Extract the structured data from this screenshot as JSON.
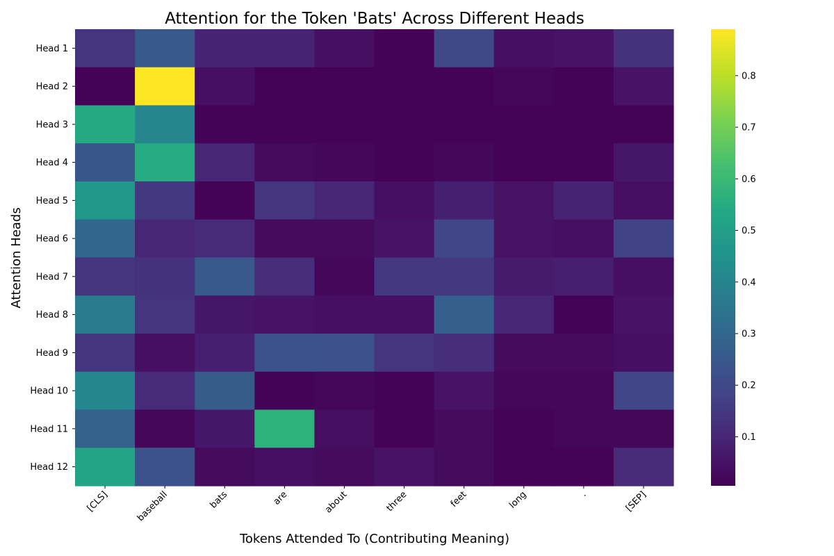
{
  "chart_data": {
    "type": "heatmap",
    "title": "Attention for the Token 'Bats' Across Different Heads",
    "xlabel": "Tokens Attended To (Contributing Meaning)",
    "ylabel": "Attention Heads",
    "x_categories": [
      "[CLS]",
      "baseball",
      "bats",
      "are",
      "about",
      "three",
      "feet",
      "long",
      ".",
      "[SEP]"
    ],
    "y_categories": [
      "Head 1",
      "Head 2",
      "Head 3",
      "Head 4",
      "Head 5",
      "Head 6",
      "Head 7",
      "Head 8",
      "Head 9",
      "Head 10",
      "Head 11",
      "Head 12"
    ],
    "values": [
      [
        0.14,
        0.25,
        0.09,
        0.09,
        0.04,
        0.01,
        0.2,
        0.04,
        0.05,
        0.13
      ],
      [
        0.01,
        0.89,
        0.04,
        0.01,
        0.01,
        0.01,
        0.01,
        0.02,
        0.01,
        0.05
      ],
      [
        0.54,
        0.41,
        0.01,
        0.01,
        0.01,
        0.01,
        0.01,
        0.01,
        0.01,
        0.01
      ],
      [
        0.24,
        0.55,
        0.1,
        0.03,
        0.02,
        0.01,
        0.02,
        0.01,
        0.01,
        0.06
      ],
      [
        0.47,
        0.15,
        0.01,
        0.14,
        0.1,
        0.04,
        0.08,
        0.05,
        0.09,
        0.04
      ],
      [
        0.3,
        0.1,
        0.11,
        0.03,
        0.03,
        0.05,
        0.19,
        0.05,
        0.04,
        0.18
      ],
      [
        0.14,
        0.13,
        0.25,
        0.12,
        0.02,
        0.15,
        0.15,
        0.07,
        0.08,
        0.04
      ],
      [
        0.37,
        0.14,
        0.06,
        0.05,
        0.04,
        0.04,
        0.27,
        0.1,
        0.01,
        0.05
      ],
      [
        0.14,
        0.04,
        0.08,
        0.23,
        0.22,
        0.14,
        0.12,
        0.03,
        0.03,
        0.04
      ],
      [
        0.41,
        0.11,
        0.26,
        0.01,
        0.02,
        0.01,
        0.05,
        0.02,
        0.02,
        0.19
      ],
      [
        0.28,
        0.02,
        0.06,
        0.57,
        0.04,
        0.01,
        0.03,
        0.01,
        0.02,
        0.02
      ],
      [
        0.52,
        0.23,
        0.03,
        0.04,
        0.03,
        0.05,
        0.03,
        0.01,
        0.01,
        0.11
      ]
    ],
    "colormap": "viridis",
    "vmin": 0.005,
    "vmax": 0.89,
    "colorbar_ticks": [
      0.1,
      0.2,
      0.3,
      0.4,
      0.5,
      0.6,
      0.7,
      0.8
    ],
    "colorbar_tick_labels": [
      "0.1",
      "0.2",
      "0.3",
      "0.4",
      "0.5",
      "0.6",
      "0.7",
      "0.8"
    ],
    "grid": false,
    "legend": "colorbar-right"
  }
}
